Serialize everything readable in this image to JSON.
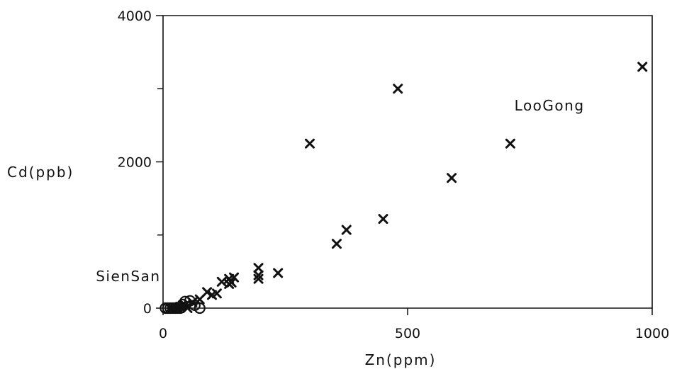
{
  "chart_data": {
    "type": "scatter",
    "title": "",
    "xlabel": "Zn(ppm)",
    "ylabel": "Cd(ppb)",
    "xlim": [
      0,
      1000
    ],
    "ylim": [
      0,
      4000
    ],
    "x_ticks": [
      0,
      500,
      1000
    ],
    "x_tick_labels": [
      "0",
      "500",
      "1000"
    ],
    "y_ticks": [
      0,
      2000,
      4000
    ],
    "y_tick_labels": [
      "0",
      "2000",
      "4000"
    ],
    "y_minor_ticks": [
      1000,
      3000
    ],
    "grid": false,
    "annotations": [
      {
        "text": "LooGong",
        "x": 790,
        "y": 2700
      },
      {
        "text": "SienSan",
        "x": -5,
        "y": 370
      }
    ],
    "series": [
      {
        "marker": "x",
        "points": [
          [
            980,
            3300
          ],
          [
            480,
            3000
          ],
          [
            300,
            2250
          ],
          [
            710,
            2250
          ],
          [
            590,
            1780
          ],
          [
            450,
            1220
          ],
          [
            375,
            1070
          ],
          [
            355,
            880
          ],
          [
            235,
            480
          ],
          [
            195,
            550
          ],
          [
            195,
            450
          ],
          [
            195,
            400
          ],
          [
            145,
            420
          ],
          [
            135,
            400
          ],
          [
            140,
            350
          ],
          [
            135,
            330
          ],
          [
            120,
            360
          ],
          [
            110,
            200
          ],
          [
            100,
            180
          ],
          [
            90,
            220
          ],
          [
            75,
            120
          ],
          [
            60,
            80
          ],
          [
            45,
            40
          ],
          [
            35,
            20
          ],
          [
            25,
            10
          ],
          [
            15,
            0
          ],
          [
            30,
            0
          ],
          [
            50,
            0
          ]
        ]
      },
      {
        "marker": "o",
        "points": [
          [
            75,
            0
          ],
          [
            65,
            40
          ],
          [
            55,
            100
          ],
          [
            45,
            90
          ],
          [
            40,
            50
          ],
          [
            35,
            0
          ],
          [
            30,
            0
          ],
          [
            25,
            0
          ],
          [
            20,
            0
          ],
          [
            15,
            0
          ],
          [
            10,
            0
          ],
          [
            5,
            0
          ]
        ]
      }
    ]
  }
}
